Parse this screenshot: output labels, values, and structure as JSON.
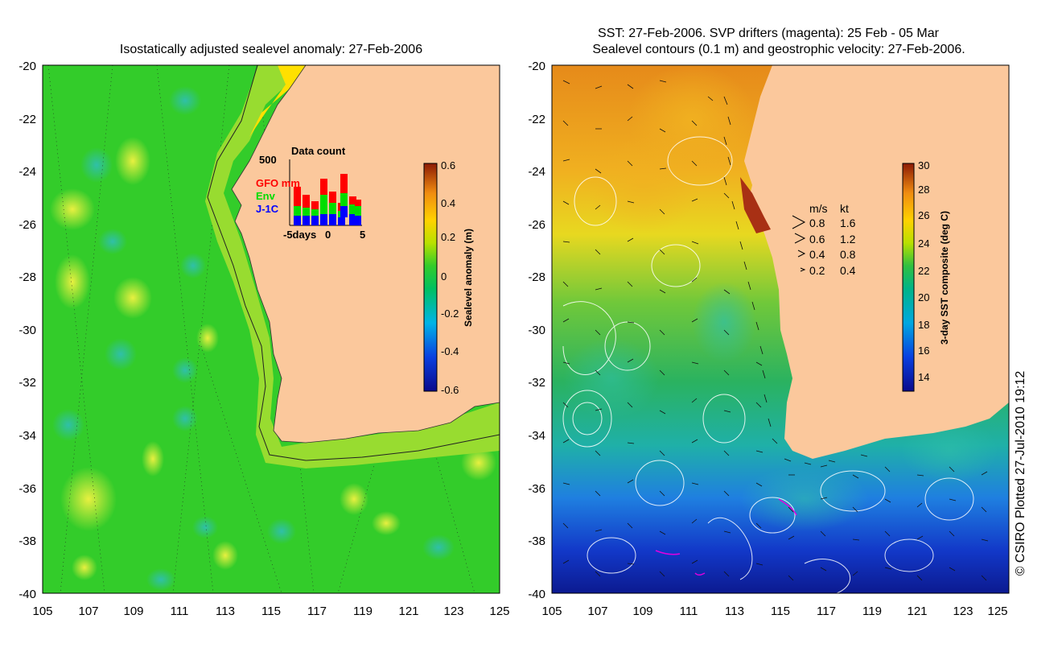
{
  "left_panel": {
    "title": "Isostatically adjusted sealevel anomaly: 27-Feb-2006",
    "y_ticks": [
      "-20",
      "-22",
      "-24",
      "-26",
      "-28",
      "-30",
      "-32",
      "-34",
      "-36",
      "-38",
      "-40"
    ],
    "x_ticks": [
      "105",
      "107",
      "109",
      "111",
      "113",
      "115",
      "117",
      "119",
      "121",
      "123",
      "125"
    ],
    "colorbar": {
      "label": "Sealevel anomaly (m)",
      "ticks": [
        "0.6",
        "0.4",
        "0.2",
        "0",
        "-0.2",
        "-0.4",
        "-0.6"
      ]
    },
    "inset": {
      "title": "Data count",
      "y_max_label": "500",
      "legend": [
        {
          "name": "GFO mm",
          "color": "#ff0000"
        },
        {
          "name": "Env",
          "color": "#00dd00"
        },
        {
          "name": "J-1C",
          "color": "#0000ff"
        }
      ],
      "x_labels": [
        "-5days",
        "0",
        "5"
      ]
    }
  },
  "right_panel": {
    "title_line1": "SST: 27-Feb-2006. SVP drifters (magenta): 25 Feb - 05 Mar",
    "title_line2": "Sealevel contours (0.1 m) and geostrophic velocity: 27-Feb-2006.",
    "y_ticks": [
      "-20",
      "-22",
      "-24",
      "-26",
      "-28",
      "-30",
      "-32",
      "-34",
      "-36",
      "-38",
      "-40"
    ],
    "x_ticks": [
      "105",
      "107",
      "109",
      "111",
      "113",
      "115",
      "117",
      "119",
      "121",
      "123",
      "125"
    ],
    "colorbar": {
      "label": "3-day SST composite (deg C)",
      "ticks": [
        "30",
        "28",
        "26",
        "24",
        "22",
        "20",
        "18",
        "16",
        "14"
      ]
    },
    "velocity_legend": {
      "header_ms": "m/s",
      "header_kt": "kt",
      "rows": [
        {
          "ms": "0.8",
          "kt": "1.6"
        },
        {
          "ms": "0.6",
          "kt": "1.2"
        },
        {
          "ms": "0.4",
          "kt": "0.8"
        },
        {
          "ms": "0.2",
          "kt": "0.4"
        }
      ]
    }
  },
  "credit": "© CSIRO Plotted 27-Jul-2010 19:12",
  "colors": {
    "land": "#fbc89c",
    "sla_base": "#33cc2a",
    "sst_warm": "#e68a1a",
    "sst_cool": "#1f7fe0"
  }
}
